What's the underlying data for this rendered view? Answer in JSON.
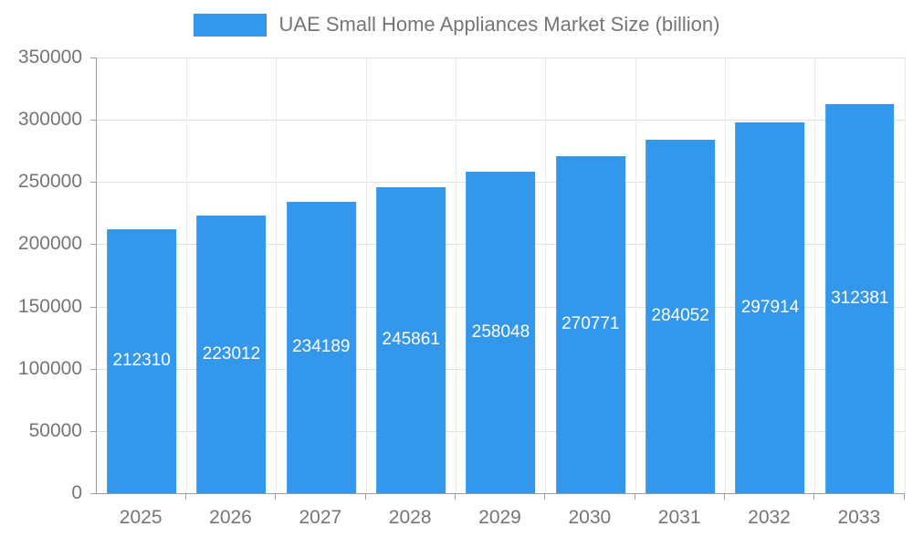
{
  "colors": {
    "bar": "#3398EB",
    "axis": "#9e9e9e",
    "grid_h": "#e2e2e2",
    "grid_v": "#ececec",
    "tick_text": "#757575",
    "title_text": "#757575",
    "bar_label_text": "#ffffff",
    "background": "#ffffff"
  },
  "legend": {
    "swatch": "legend-color-box",
    "label": "UAE Small Home Appliances Market Size (billion)"
  },
  "chart_data": {
    "type": "bar",
    "title": "UAE Small Home Appliances Market Size (billion)",
    "categories": [
      "2025",
      "2026",
      "2027",
      "2028",
      "2029",
      "2030",
      "2031",
      "2032",
      "2033"
    ],
    "values": [
      212310,
      223012,
      234189,
      245861,
      258048,
      270771,
      284052,
      297914,
      312381
    ],
    "series": [
      {
        "name": "UAE Small Home Appliances Market Size (billion)",
        "values": [
          212310,
          223012,
          234189,
          245861,
          258048,
          270771,
          284052,
          297914,
          312381
        ]
      }
    ],
    "xlabel": "",
    "ylabel": "",
    "ylim": [
      0,
      350000
    ],
    "ytick_step": 50000,
    "ytick_labels": [
      "0",
      "50000",
      "100000",
      "150000",
      "200000",
      "250000",
      "300000",
      "350000"
    ],
    "grid": "horizontal and faint vertical gridlines on",
    "legend_position": "top center",
    "bar_labels_visible": true,
    "bar_label_position": "center of bar"
  }
}
